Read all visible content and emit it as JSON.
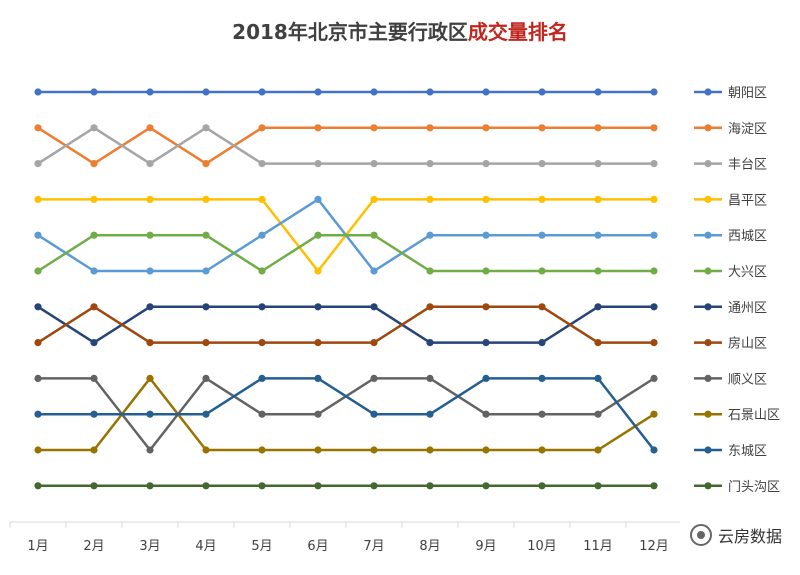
{
  "title_main": "2018年北京市主要行政区",
  "title_highlight": "成交量排名",
  "watermark": "云房数据",
  "chart_data": {
    "type": "line",
    "title": "2018年北京市主要行政区成交量排名",
    "categories": [
      "1月",
      "2月",
      "3月",
      "4月",
      "5月",
      "6月",
      "7月",
      "8月",
      "9月",
      "10月",
      "11月",
      "12月"
    ],
    "y_reversed": true,
    "ylim": [
      1,
      12
    ],
    "grid": false,
    "legend_position": "right",
    "series": [
      {
        "name": "朝阳区",
        "color": "#4472c4",
        "values": [
          1,
          1,
          1,
          1,
          1,
          1,
          1,
          1,
          1,
          1,
          1,
          1
        ]
      },
      {
        "name": "海淀区",
        "color": "#ed7d31",
        "values": [
          2,
          3,
          2,
          3,
          2,
          2,
          2,
          2,
          2,
          2,
          2,
          2
        ]
      },
      {
        "name": "丰台区",
        "color": "#a5a5a5",
        "values": [
          3,
          2,
          3,
          2,
          3,
          3,
          3,
          3,
          3,
          3,
          3,
          3
        ]
      },
      {
        "name": "昌平区",
        "color": "#ffc000",
        "values": [
          4,
          4,
          4,
          4,
          4,
          6,
          4,
          4,
          4,
          4,
          4,
          4
        ]
      },
      {
        "name": "西城区",
        "color": "#5b9bd5",
        "values": [
          5,
          6,
          6,
          6,
          5,
          4,
          6,
          5,
          5,
          5,
          5,
          5
        ]
      },
      {
        "name": "大兴区",
        "color": "#70ad47",
        "values": [
          6,
          5,
          5,
          5,
          6,
          5,
          5,
          6,
          6,
          6,
          6,
          6
        ]
      },
      {
        "name": "通州区",
        "color": "#264478",
        "values": [
          7,
          8,
          7,
          7,
          7,
          7,
          7,
          8,
          8,
          8,
          7,
          7
        ]
      },
      {
        "name": "房山区",
        "color": "#9e480e",
        "values": [
          8,
          7,
          8,
          8,
          8,
          8,
          8,
          7,
          7,
          7,
          8,
          8
        ]
      },
      {
        "name": "顺义区",
        "color": "#636363",
        "values": [
          9,
          9,
          11,
          9,
          10,
          10,
          9,
          9,
          10,
          10,
          10,
          9
        ]
      },
      {
        "name": "石景山区",
        "color": "#997300",
        "values": [
          11,
          11,
          9,
          11,
          11,
          11,
          11,
          11,
          11,
          11,
          11,
          10
        ]
      },
      {
        "name": "东城区",
        "color": "#255e91",
        "values": [
          10,
          10,
          10,
          10,
          9,
          9,
          10,
          10,
          9,
          9,
          9,
          11
        ]
      },
      {
        "name": "门头沟区",
        "color": "#43682b",
        "values": [
          12,
          12,
          12,
          12,
          12,
          12,
          12,
          12,
          12,
          12,
          12,
          12
        ]
      }
    ]
  }
}
